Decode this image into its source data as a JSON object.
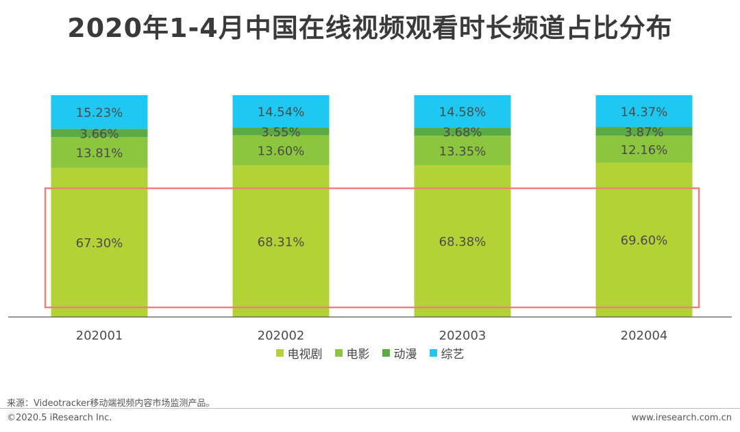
{
  "title": "2020年1-4月中国在线视频观看时长频道占比分布",
  "footer": {
    "source": "来源：Videotracker移动端视频内容市场监测产品。",
    "copyright": "©2020.5 iResearch Inc.",
    "website": "www.iresearch.com.cn"
  },
  "chart_data": {
    "type": "bar",
    "stacked": true,
    "categories": [
      "202001",
      "202002",
      "202003",
      "202004"
    ],
    "series": [
      {
        "name": "电视剧",
        "values": [
          67.3,
          68.31,
          68.38,
          69.6
        ],
        "labels": [
          "67.30%",
          "68.31%",
          "68.38%",
          "69.60%"
        ],
        "color": "#b2d235"
      },
      {
        "name": "电影",
        "values": [
          13.81,
          13.6,
          13.35,
          12.16
        ],
        "labels": [
          "13.81%",
          "13.60%",
          "13.35%",
          "12.16%"
        ],
        "color": "#8cc63f"
      },
      {
        "name": "动漫",
        "values": [
          3.66,
          3.55,
          3.68,
          3.87
        ],
        "labels": [
          "3.66%",
          "3.55%",
          "3.68%",
          "3.87%"
        ],
        "color": "#5aaa46"
      },
      {
        "name": "综艺",
        "values": [
          15.23,
          14.54,
          14.58,
          14.37
        ],
        "labels": [
          "15.23%",
          "14.54%",
          "14.58%",
          "14.37%"
        ],
        "color": "#1fc8f0"
      }
    ],
    "ylim": [
      0,
      100
    ],
    "legend_position": "bottom",
    "grid": false,
    "highlight_color": "#f08080"
  }
}
